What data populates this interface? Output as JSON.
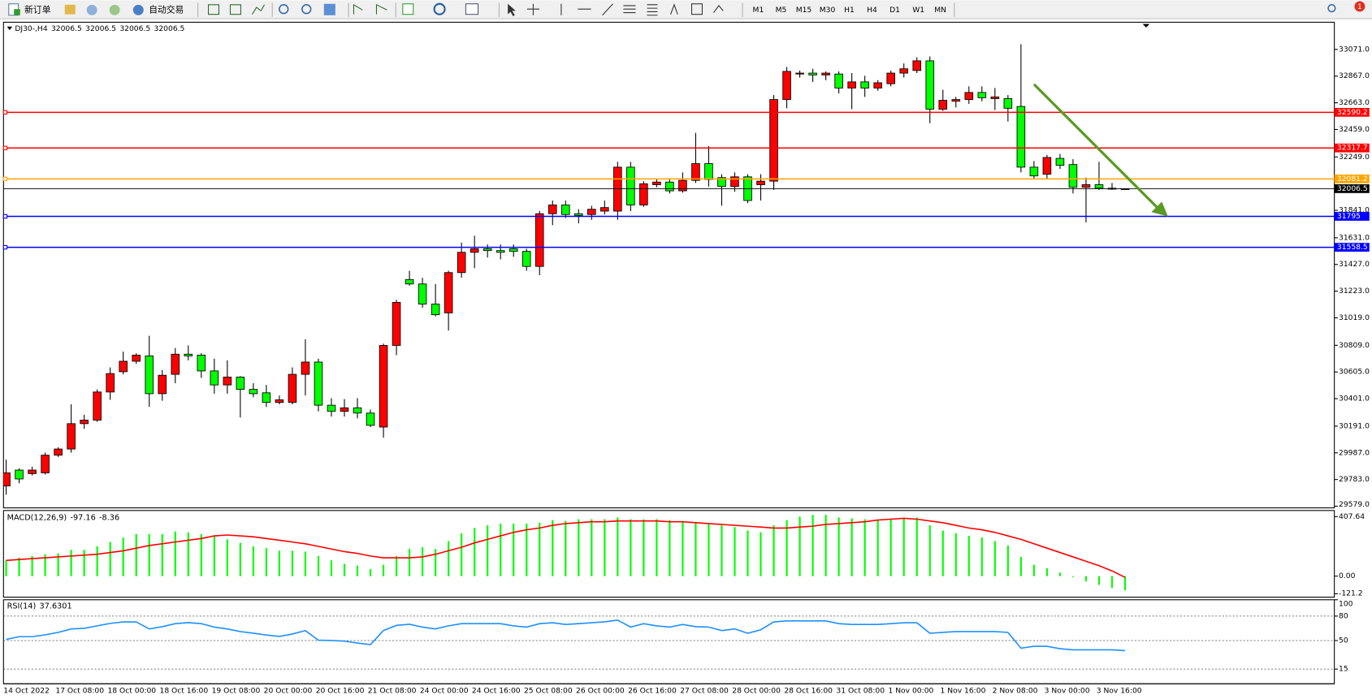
{
  "toolbar": {
    "new_order": "新订单",
    "auto_trading": "自动交易",
    "periods": [
      "M1",
      "M5",
      "M15",
      "M30",
      "H1",
      "H4",
      "D1",
      "W1",
      "MN"
    ],
    "badge": 1
  },
  "chart_data": [
    {
      "type": "candlestick",
      "symbol": "DJ30-,H4",
      "categories": [
        "14 Oct 2022",
        null,
        null,
        null,
        "17 Oct 08:00",
        null,
        null,
        null,
        "18 Oct 00:00",
        null,
        null,
        null,
        "18 Oct 16:00",
        null,
        null,
        null,
        "19 Oct 08:00",
        null,
        null,
        null,
        "20 Oct 00:00",
        null,
        null,
        null,
        "20 Oct 16:00",
        null,
        null,
        null,
        "21 Oct 08:00",
        null,
        null,
        null,
        "24 Oct 00:00",
        null,
        null,
        null,
        "24 Oct 16:00",
        null,
        null,
        null,
        "25 Oct 08:00",
        null,
        null,
        null,
        "26 Oct 00:00",
        null,
        null,
        null,
        "26 Oct 16:00",
        null,
        null,
        null,
        "27 Oct 08:00",
        null,
        null,
        null,
        "28 Oct 00:00",
        null,
        null,
        null,
        "28 Oct 16:00",
        null,
        null,
        null,
        "31 Oct 08:00",
        null,
        null,
        null,
        "1 Nov 00:00",
        null,
        null,
        null,
        "1 Nov 16:00",
        null,
        null,
        null,
        "2 Nov 08:00",
        null,
        null,
        null,
        "3 Nov 00:00",
        null,
        null,
        null,
        "3 Nov 16:00",
        null,
        null
      ],
      "open": [
        29734,
        29855,
        29828,
        29834,
        29969,
        30016,
        30210,
        30237,
        30452,
        30607,
        30687,
        30728,
        30439,
        30587,
        30741,
        30734,
        30613,
        30506,
        30566,
        30472,
        30446,
        30372,
        30372,
        30587,
        30681,
        30351,
        30304,
        30331,
        30291,
        30184,
        30808,
        31312,
        31278,
        31124,
        31057,
        31365,
        31520,
        31547,
        31533,
        31547,
        31527,
        31412,
        31815,
        31882,
        31815,
        31809,
        31835,
        31835,
        32171,
        31882,
        32037,
        32057,
        31990,
        32070,
        32198,
        32091,
        32023,
        32097,
        32037,
        32064,
        32688,
        32883,
        32890,
        32876,
        32883,
        32776,
        32823,
        32776,
        32809,
        32890,
        32910,
        32984,
        32614,
        32675,
        32688,
        32742,
        32695,
        32695,
        32635,
        32171,
        32117,
        32238,
        32191,
        32017,
        32037,
        32010,
        32006.5
      ],
      "high": [
        29935,
        29868,
        29881,
        29989,
        30029,
        30358,
        30278,
        30472,
        30640,
        30761,
        30748,
        30882,
        30620,
        30788,
        30808,
        30748,
        30707,
        30694,
        30573,
        30519,
        30506,
        30425,
        30640,
        30855,
        30707,
        30405,
        30398,
        30405,
        30318,
        30822,
        31157,
        31379,
        31325,
        31278,
        31379,
        31594,
        31647,
        31580,
        31580,
        31580,
        31547,
        31835,
        31916,
        31916,
        31849,
        31876,
        31916,
        32212,
        32212,
        32064,
        32084,
        32084,
        32131,
        32433,
        32332,
        32117,
        32131,
        32117,
        32117,
        32722,
        32937,
        32910,
        32923,
        32903,
        32903,
        32890,
        32870,
        32836,
        32910,
        32964,
        33011,
        33017,
        32762,
        32708,
        32789,
        32789,
        32776,
        32722,
        33111,
        32218,
        32265,
        32272,
        32232,
        32091,
        32212,
        32050,
        32006.5
      ],
      "low": [
        29667,
        29754,
        29814,
        29821,
        29955,
        29989,
        30170,
        30224,
        30392,
        30587,
        30667,
        30338,
        30385,
        30519,
        30694,
        30560,
        30439,
        30439,
        30257,
        30412,
        30338,
        30358,
        30358,
        30425,
        30304,
        30264,
        30264,
        30251,
        30184,
        30103,
        30734,
        31265,
        31097,
        31030,
        30922,
        31325,
        31399,
        31480,
        31466,
        31486,
        31379,
        31345,
        31728,
        31782,
        31741,
        31768,
        31809,
        31768,
        31835,
        31869,
        32017,
        31970,
        31976,
        32050,
        32023,
        31876,
        31983,
        31896,
        31916,
        31997,
        32621,
        32856,
        32823,
        32836,
        32735,
        32614,
        32708,
        32755,
        32789,
        32856,
        32890,
        32507,
        32601,
        32628,
        32655,
        32675,
        32608,
        32520,
        32131,
        32084,
        32084,
        32158,
        31970,
        31748,
        31997,
        31997,
        32006.5
      ],
      "close": [
        29834,
        29787,
        29855,
        29969,
        30016,
        30210,
        30237,
        30452,
        30593,
        30687,
        30734,
        30439,
        30580,
        30741,
        30728,
        30613,
        30506,
        30566,
        30472,
        30439,
        30372,
        30392,
        30587,
        30681,
        30351,
        30304,
        30331,
        30291,
        30197,
        30808,
        31137,
        31278,
        31124,
        31043,
        31365,
        31520,
        31547,
        31533,
        31520,
        31527,
        31412,
        31815,
        31882,
        31809,
        31802,
        31849,
        31862,
        32171,
        31882,
        32044,
        32057,
        31990,
        32070,
        32198,
        32077,
        32023,
        32097,
        31916,
        32064,
        32688,
        32903,
        32890,
        32876,
        32890,
        32776,
        32823,
        32776,
        32816,
        32890,
        32923,
        32984,
        32614,
        32682,
        32688,
        32742,
        32702,
        32708,
        32621,
        32171,
        32104,
        32245,
        32185,
        32017,
        32037,
        32010,
        32003,
        32006.5
      ],
      "up_color": "#ff0000",
      "down_color": "#00ff00",
      "current_color": "#000000",
      "levels": [
        {
          "value": 32590.2,
          "color": "#ff0000"
        },
        {
          "value": 32317.7,
          "color": "#ff0000"
        },
        {
          "value": 32081.2,
          "color": "#ffa500"
        },
        {
          "value": 31795.0,
          "color": "#0000ff"
        },
        {
          "value": 31558.5,
          "color": "#0000ff"
        }
      ],
      "ylim": [
        29566,
        33279
      ],
      "yticks": [
        {
          "value": 33071,
          "label": "33071.0"
        },
        {
          "value": 32867,
          "label": "32867.0"
        },
        {
          "value": 32663,
          "label": "32663.0"
        },
        {
          "value": 32459,
          "label": "32459.0"
        },
        {
          "value": 32249,
          "label": "32249.0"
        },
        {
          "value": 31841,
          "label": "31841.0"
        },
        {
          "value": 31631,
          "label": "31631.0"
        },
        {
          "value": 31427,
          "label": "31427.0"
        },
        {
          "value": 31223,
          "label": "31223.0"
        },
        {
          "value": 31019,
          "label": "31019.0"
        },
        {
          "value": 30809,
          "label": "30809.0"
        },
        {
          "value": 30605,
          "label": "30605.0"
        },
        {
          "value": 30401,
          "label": "30401.0"
        },
        {
          "value": 30191,
          "label": "30191.0"
        },
        {
          "value": 29987,
          "label": "29987.0"
        },
        {
          "value": 29783,
          "label": "29783.0"
        },
        {
          "value": 29579,
          "label": "29579.0"
        }
      ],
      "grid": false
    },
    {
      "type": "macd",
      "title": "MACD(12,26,9)",
      "series": [
        {
          "color": "#00ff00",
          "values": [
            108,
            126,
            138,
            150,
            156,
            180,
            180,
            204,
            234,
            264,
            288,
            288,
            288,
            306,
            300,
            288,
            276,
            252,
            228,
            204,
            192,
            174,
            174,
            168,
            138,
            108,
            84,
            72,
            48,
            78,
            138,
            186,
            198,
            186,
            240,
            294,
            330,
            348,
            360,
            360,
            360,
            366,
            384,
            378,
            390,
            390,
            390,
            402,
            390,
            390,
            390,
            384,
            378,
            372,
            360,
            348,
            336,
            312,
            300,
            348,
            384,
            408,
            420,
            420,
            402,
            396,
            390,
            384,
            390,
            396,
            402,
            348,
            312,
            294,
            276,
            264,
            240,
            210,
            132,
            78,
            54,
            24,
            -6,
            -36,
            -60,
            -80,
            -97.16
          ]
        },
        {
          "color": "#ff0000",
          "values": [
            108,
            114,
            120,
            126,
            132,
            138,
            144,
            150,
            162,
            174,
            192,
            210,
            222,
            234,
            246,
            258,
            276,
            282,
            276,
            270,
            258,
            246,
            234,
            222,
            204,
            186,
            168,
            156,
            138,
            126,
            126,
            126,
            132,
            150,
            174,
            198,
            228,
            252,
            276,
            300,
            318,
            330,
            348,
            360,
            366,
            372,
            372,
            378,
            378,
            378,
            378,
            372,
            372,
            366,
            360,
            354,
            348,
            342,
            336,
            330,
            330,
            336,
            342,
            354,
            360,
            366,
            372,
            384,
            390,
            396,
            390,
            378,
            366,
            348,
            330,
            318,
            300,
            276,
            252,
            222,
            192,
            162,
            132,
            102,
            72,
            36,
            -8.36
          ]
        }
      ],
      "ylim": [
        -143.9,
        449.6
      ],
      "yticks": [
        407.64,
        {
          "value": 0,
          "label": "0.00"
        },
        -121.2
      ],
      "grid": false
    },
    {
      "type": "line",
      "title": "RSI(14)",
      "series": [
        {
          "color": "#1e90ff",
          "values": [
            51.4,
            54.7,
            54.7,
            57,
            60,
            64.3,
            65,
            68,
            71,
            72.9,
            72.9,
            64.3,
            67,
            70.7,
            72,
            70.7,
            66.5,
            64.3,
            61.1,
            59,
            56.8,
            55,
            58,
            62.2,
            50.4,
            50,
            49.3,
            47,
            45,
            62.2,
            68.6,
            70,
            66.5,
            64.3,
            68,
            70.7,
            70.7,
            70.7,
            70.7,
            68,
            66.5,
            70.7,
            71.8,
            69.7,
            70.7,
            71.8,
            73,
            75,
            66.5,
            70.7,
            68,
            66.5,
            69.7,
            67,
            66.5,
            62.2,
            64.3,
            58.9,
            63.2,
            72.9,
            74,
            74,
            74,
            74,
            70.7,
            69.7,
            69.7,
            69.7,
            70.7,
            71.8,
            71.8,
            58.9,
            60,
            61.1,
            61.1,
            61.1,
            61.1,
            60,
            40.7,
            42.9,
            42.9,
            40,
            38.6,
            38.6,
            38.6,
            38.6,
            37.6301
          ]
        }
      ],
      "ylim": [
        -3,
        100
      ],
      "yticks": [
        100,
        80,
        50,
        15
      ],
      "grid": true
    }
  ]
}
